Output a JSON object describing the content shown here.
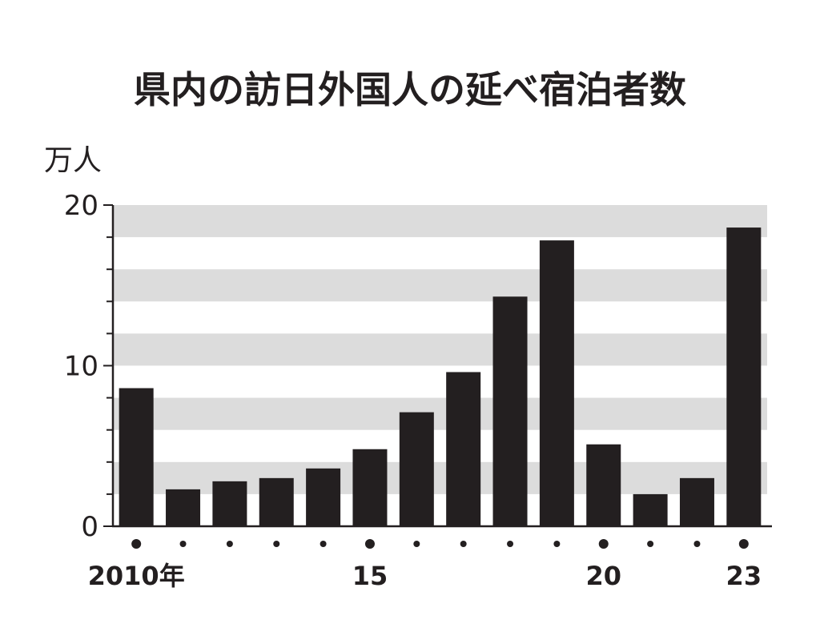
{
  "chart_data": {
    "type": "bar",
    "title": "県内の訪日外国人の延べ宿泊者数",
    "unit": "万人",
    "ylim": [
      0,
      20
    ],
    "yticks": [
      "0",
      "10",
      "20"
    ],
    "categories": [
      "2010",
      "2011",
      "2012",
      "2013",
      "2014",
      "2015",
      "2016",
      "2017",
      "2018",
      "2019",
      "2020",
      "2021",
      "2022",
      "2023"
    ],
    "values": [
      8.6,
      2.3,
      2.8,
      3.0,
      3.6,
      4.8,
      7.1,
      9.6,
      14.3,
      17.8,
      5.1,
      2.0,
      3.0,
      18.6
    ],
    "xtick_labels": [
      "2010年",
      "",
      "",
      "",
      "",
      "15",
      "",
      "",
      "",
      "",
      "20",
      "",
      "",
      "23"
    ],
    "major_ticks": [
      0,
      5,
      10,
      13
    ],
    "band_stripes": true,
    "colors": {
      "bar": "#231f20",
      "band": "#dcdcdc",
      "text": "#231f20",
      "axis": "#231f20"
    }
  }
}
